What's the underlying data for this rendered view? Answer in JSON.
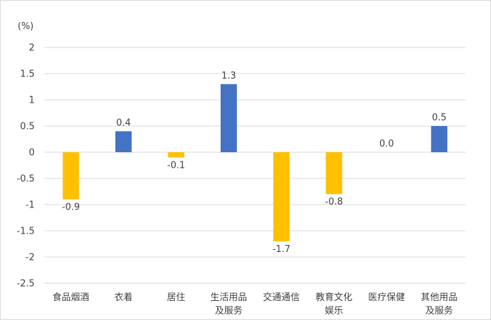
{
  "chart_data": {
    "type": "bar",
    "unit": "(%)",
    "categories": [
      [
        "食品烟酒"
      ],
      [
        "衣着"
      ],
      [
        "居住"
      ],
      [
        "生活用品",
        "及服务"
      ],
      [
        "交通通信"
      ],
      [
        "教育文化",
        "娱乐"
      ],
      [
        "医疗保健"
      ],
      [
        "其他用品",
        "及服务"
      ]
    ],
    "values": [
      -0.9,
      0.4,
      -0.1,
      1.3,
      -1.7,
      -0.8,
      0.0,
      0.5
    ],
    "data_labels": [
      "-0.9",
      "0.4",
      "-0.1",
      "1.3",
      "-1.7",
      "-0.8",
      "0.0",
      "0.5"
    ],
    "ylim": [
      -2.5,
      2
    ],
    "yticks": [
      2,
      1.5,
      1,
      0.5,
      0,
      -0.5,
      -1,
      -1.5,
      -2,
      -2.5
    ],
    "ytick_labels": [
      "2",
      "1.5",
      "1",
      "0.5",
      "0",
      "-0.5",
      "-1",
      "-1.5",
      "-2",
      "-2.5"
    ],
    "grid": true,
    "legend": "none",
    "colors": {
      "positive": "#4472C4",
      "negative": "#FFC000",
      "grid": "#d9d9d9",
      "text": "#404040"
    }
  }
}
